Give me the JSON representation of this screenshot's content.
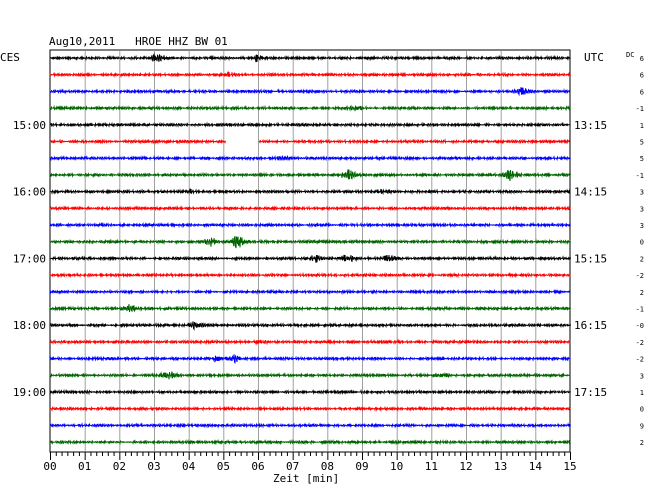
{
  "chart_data": {
    "type": "line",
    "title": "Aug10,2011   HROE HHZ BW 01",
    "left_axis_label": "CES",
    "right_axis_label": "UTC",
    "right_corner_label": "DC",
    "xlabel": "Zeit [min]",
    "x_ticks": [
      "00",
      "01",
      "02",
      "03",
      "04",
      "05",
      "06",
      "07",
      "08",
      "09",
      "10",
      "11",
      "12",
      "13",
      "14",
      "15"
    ],
    "xlim": [
      0,
      15
    ],
    "left_time_labels": [
      {
        "row": 4,
        "text": "15:00"
      },
      {
        "row": 8,
        "text": "16:00"
      },
      {
        "row": 12,
        "text": "17:00"
      },
      {
        "row": 16,
        "text": "18:00"
      },
      {
        "row": 20,
        "text": "19:00"
      }
    ],
    "right_time_labels": [
      {
        "row": 4,
        "text": "13:15"
      },
      {
        "row": 8,
        "text": "14:15"
      },
      {
        "row": 12,
        "text": "15:15"
      },
      {
        "row": 16,
        "text": "16:15"
      },
      {
        "row": 20,
        "text": "17:15"
      }
    ],
    "dc_offsets": [
      "6",
      "6",
      "6",
      "-1",
      "1",
      "5",
      "5",
      "-1",
      "3",
      "3",
      "3",
      "0",
      "2",
      "-2",
      "2",
      "-1",
      "-0",
      "-2",
      "-2",
      "3",
      "1",
      "0",
      "9",
      "2"
    ],
    "trace_colors": [
      "#000000",
      "#ff0000",
      "#0000ff",
      "#006400"
    ],
    "traces": [
      {
        "row": 0,
        "color": "#000000",
        "events": [
          {
            "t": 3.1,
            "amp": 1.8
          },
          {
            "t": 5.9,
            "amp": 1.6
          }
        ]
      },
      {
        "row": 1,
        "color": "#ff0000",
        "events": [
          {
            "t": 5.2,
            "amp": 0.6
          }
        ]
      },
      {
        "row": 2,
        "color": "#0000ff",
        "events": [
          {
            "t": 13.6,
            "amp": 1.8
          }
        ]
      },
      {
        "row": 3,
        "color": "#006400",
        "events": [
          {
            "t": 8.8,
            "amp": 0.8
          }
        ]
      },
      {
        "row": 4,
        "color": "#000000",
        "events": []
      },
      {
        "row": 5,
        "color": "#ff0000",
        "events": [],
        "gap": [
          5.05,
          6.0
        ]
      },
      {
        "row": 6,
        "color": "#0000ff",
        "events": [
          {
            "t": 6.7,
            "amp": 0.7
          }
        ]
      },
      {
        "row": 7,
        "color": "#006400",
        "events": [
          {
            "t": 8.6,
            "amp": 2.0
          },
          {
            "t": 13.3,
            "amp": 2.2
          }
        ]
      },
      {
        "row": 8,
        "color": "#000000",
        "events": [
          {
            "t": 4.2,
            "amp": 0.9
          },
          {
            "t": 9.6,
            "amp": 0.9
          }
        ]
      },
      {
        "row": 9,
        "color": "#ff0000",
        "events": []
      },
      {
        "row": 10,
        "color": "#0000ff",
        "events": []
      },
      {
        "row": 11,
        "color": "#006400",
        "events": [
          {
            "t": 4.6,
            "amp": 2.2
          },
          {
            "t": 5.4,
            "amp": 2.6
          }
        ]
      },
      {
        "row": 12,
        "color": "#000000",
        "events": [
          {
            "t": 7.6,
            "amp": 1.6
          },
          {
            "t": 8.6,
            "amp": 1.9
          },
          {
            "t": 9.8,
            "amp": 1.3
          }
        ]
      },
      {
        "row": 13,
        "color": "#ff0000",
        "events": []
      },
      {
        "row": 14,
        "color": "#0000ff",
        "events": []
      },
      {
        "row": 15,
        "color": "#006400",
        "events": [
          {
            "t": 2.3,
            "amp": 1.4
          }
        ]
      },
      {
        "row": 16,
        "color": "#000000",
        "events": [
          {
            "t": 4.2,
            "amp": 1.3
          }
        ]
      },
      {
        "row": 17,
        "color": "#ff0000",
        "events": [
          {
            "t": 6.1,
            "amp": 0.7
          }
        ]
      },
      {
        "row": 18,
        "color": "#0000ff",
        "events": [
          {
            "t": 4.7,
            "amp": 1.2
          },
          {
            "t": 5.3,
            "amp": 1.5
          }
        ]
      },
      {
        "row": 19,
        "color": "#006400",
        "events": [
          {
            "t": 3.4,
            "amp": 1.8
          },
          {
            "t": 11.3,
            "amp": 0.7
          }
        ]
      },
      {
        "row": 20,
        "color": "#000000",
        "events": []
      },
      {
        "row": 21,
        "color": "#ff0000",
        "events": []
      },
      {
        "row": 22,
        "color": "#0000ff",
        "events": []
      },
      {
        "row": 23,
        "color": "#006400",
        "events": []
      }
    ],
    "grid": true
  }
}
